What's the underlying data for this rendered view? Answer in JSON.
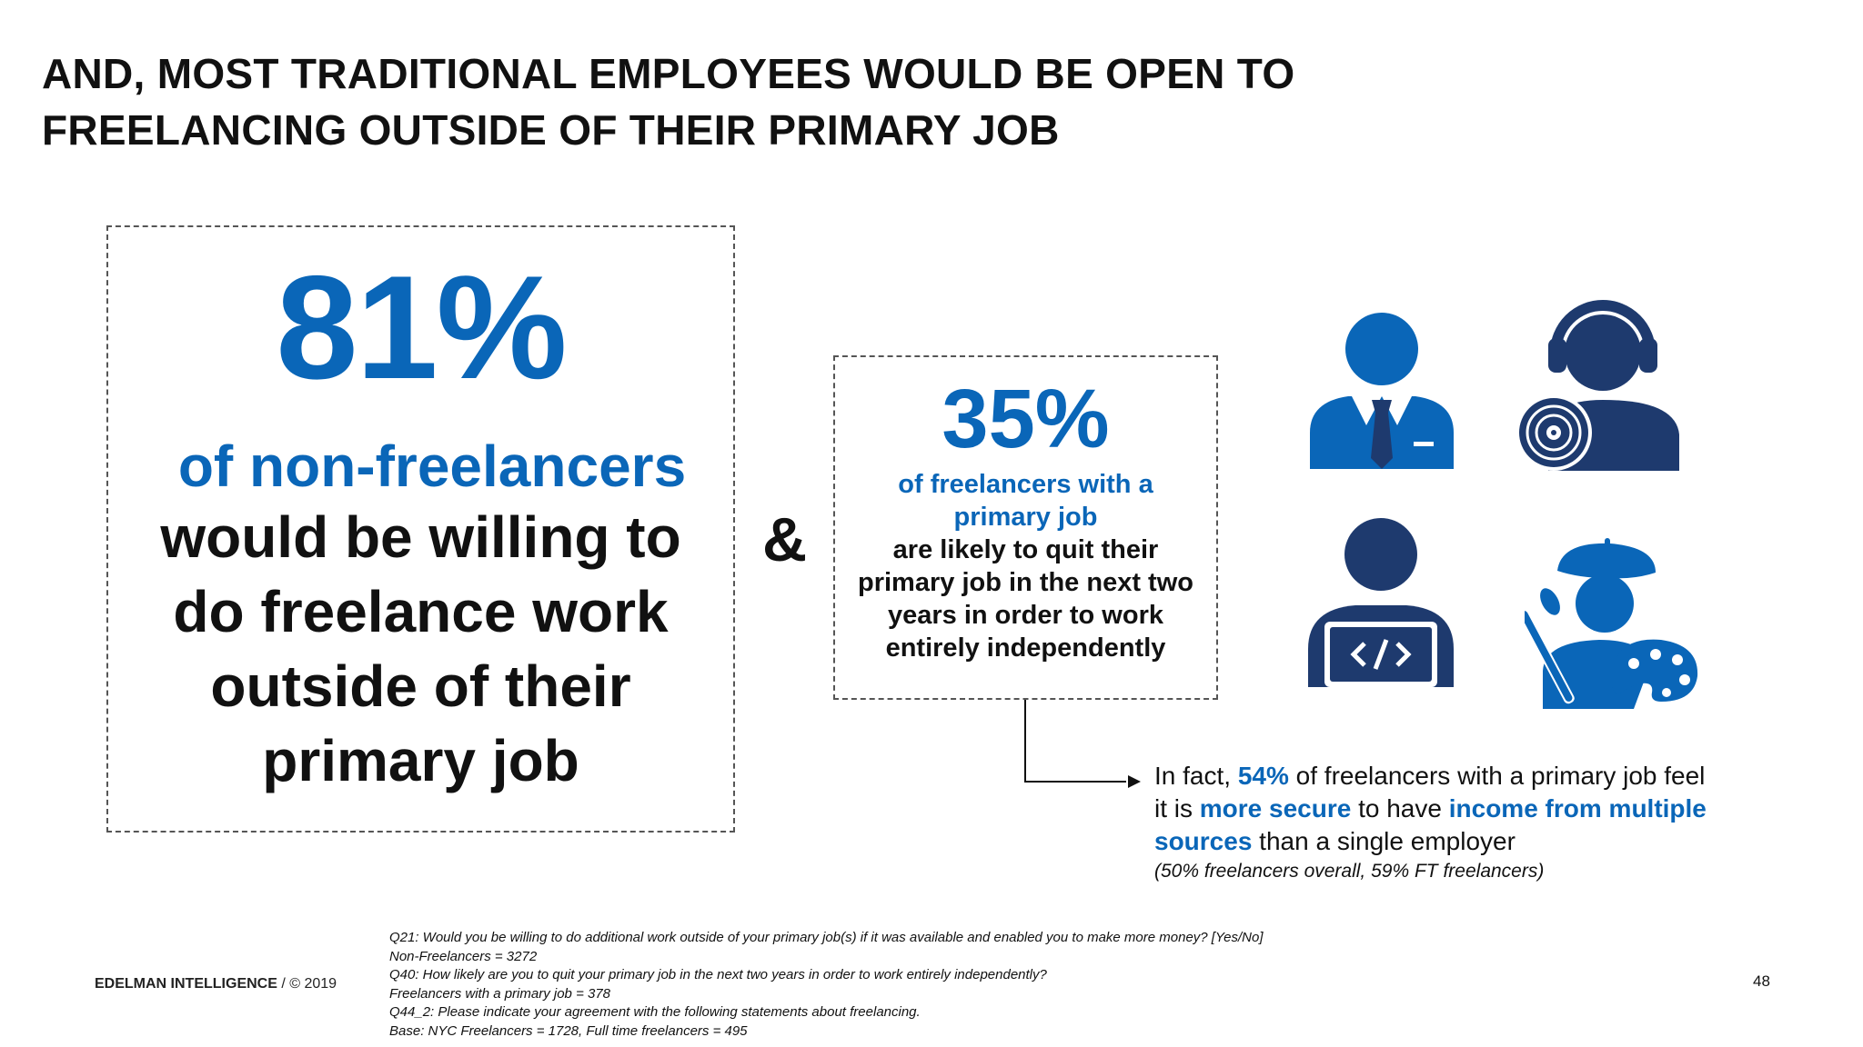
{
  "title": {
    "line1": "AND, MOST TRADITIONAL EMPLOYEES WOULD BE OPEN TO",
    "line2": "FREELANCING OUTSIDE OF THEIR PRIMARY JOB"
  },
  "left_stat": {
    "percent": "81%",
    "blue_line": "of non-freelancers",
    "lines": [
      "would be willing to",
      "do freelance work",
      "outside of their",
      "primary job"
    ]
  },
  "ampersand": "&",
  "mid_stat": {
    "percent": "35%",
    "blue_lines": [
      "of freelancers with a",
      "primary job"
    ],
    "lines": [
      "are likely to quit their",
      "primary job in the next two",
      "years in order to work",
      "entirely independently"
    ]
  },
  "fact": {
    "p1": "In fact, ",
    "h1": "54%",
    "p2": " of freelancers with a primary job feel",
    "p3": "it is ",
    "h2": "more secure",
    "p4": " to have ",
    "h3": "income from multiple",
    "h4": "sources",
    "p5": " than a single employer",
    "note": "(50% freelancers overall, 59% FT freelancers)"
  },
  "icons": [
    "businessman-icon",
    "dj-headphones-icon",
    "developer-laptop-icon",
    "painter-artist-icon"
  ],
  "colors": {
    "blue": "#0a66b8",
    "navy": "#1e3a6e",
    "text": "#111111"
  },
  "footer": {
    "brand": "EDELMAN INTELLIGENCE",
    "copyright": " / © 2019",
    "page_number": "48",
    "notes": [
      "Q21: Would you be willing to do additional work outside of your primary job(s) if it was available and enabled you to make more money? [Yes/No]",
      "Non-Freelancers = 3272",
      "Q40: How likely are you to quit your primary job in the next two years in order to work entirely independently?",
      "Freelancers with a primary job = 378",
      "Q44_2: Please indicate your agreement with the following statements about freelancing.",
      "Base:  NYC Freelancers = 1728, Full time freelancers = 495"
    ]
  }
}
